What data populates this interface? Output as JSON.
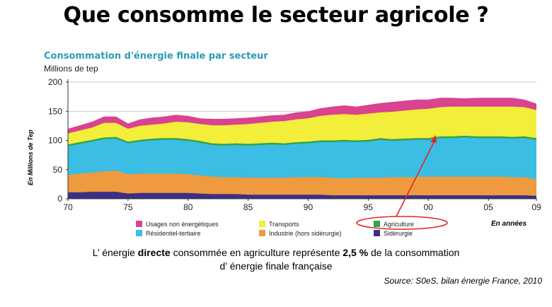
{
  "page_title": "Que consomme le secteur agricole ?",
  "side_label": "En Millions de Tep",
  "years_label": "En années",
  "note": {
    "line1_a": "L’ énergie ",
    "line1_bold": "directe",
    "line1_b": " consommée en agriculture représente ",
    "line1_pct": "2,5 %",
    "line1_c": " de la consommation",
    "line2": "d’ énergie finale française"
  },
  "source": "Source: S0eS, bilan énergie France, 2010",
  "colors": {
    "sidérurgie": "#3b2f86",
    "industrie": "#ef9a3e",
    "residentiel": "#3bbde4",
    "agriculture": "#31a24c",
    "transports": "#f2ee3a",
    "usages": "#d9438f",
    "annotation": "#e32525"
  },
  "chart_data": {
    "type": "area",
    "title": "Consommation d'énergie finale par secteur",
    "ylabel": "Millions de tep",
    "xlim": [
      1970,
      2009
    ],
    "ylim": [
      0,
      200
    ],
    "yticks": [
      0,
      50,
      100,
      150,
      200
    ],
    "xtick_labels": [
      {
        "year": 1970,
        "label": "70"
      },
      {
        "year": 1975,
        "label": "75"
      },
      {
        "year": 1980,
        "label": "80"
      },
      {
        "year": 1985,
        "label": "85"
      },
      {
        "year": 1990,
        "label": "90"
      },
      {
        "year": 1995,
        "label": "95"
      },
      {
        "year": 2000,
        "label": "00"
      },
      {
        "year": 2005,
        "label": "05"
      },
      {
        "year": 2009,
        "label": "09"
      }
    ],
    "stacked": true,
    "x": [
      1970,
      1971,
      1972,
      1973,
      1974,
      1975,
      1976,
      1977,
      1978,
      1979,
      1980,
      1981,
      1982,
      1983,
      1984,
      1985,
      1986,
      1987,
      1988,
      1989,
      1990,
      1991,
      1992,
      1993,
      1994,
      1995,
      1996,
      1997,
      1998,
      1999,
      2000,
      2001,
      2002,
      2003,
      2004,
      2005,
      2006,
      2007,
      2008,
      2009
    ],
    "cumulative_tops": [
      {
        "name": "Sidérurgie",
        "key": "siderurgie",
        "values": [
          11,
          11,
          12,
          12,
          12,
          9,
          10,
          10,
          10,
          10,
          10,
          9,
          8,
          8,
          8,
          7,
          7,
          7,
          7,
          7,
          7,
          7,
          6,
          6,
          6,
          6,
          6,
          6,
          6,
          6,
          6,
          6,
          6,
          6,
          6,
          6,
          6,
          6,
          6,
          5
        ]
      },
      {
        "name": "Industrie (hors sidérurgie)",
        "key": "industrie",
        "values": [
          41,
          43,
          45,
          47,
          48,
          42,
          43,
          43,
          43,
          43,
          42,
          40,
          38,
          37,
          37,
          36,
          36,
          36,
          36,
          37,
          37,
          37,
          36,
          35,
          36,
          36,
          36,
          37,
          37,
          37,
          38,
          38,
          38,
          38,
          38,
          38,
          38,
          37,
          37,
          33
        ]
      },
      {
        "name": "Résidentiel-tertiaire",
        "key": "residentiel",
        "values": [
          90,
          94,
          98,
          102,
          103,
          95,
          98,
          100,
          101,
          101,
          99,
          96,
          92,
          91,
          92,
          91,
          92,
          93,
          92,
          94,
          95,
          97,
          97,
          98,
          97,
          98,
          101,
          99,
          100,
          101,
          101,
          104,
          104,
          105,
          104,
          104,
          104,
          103,
          104,
          101
        ]
      },
      {
        "name": "Agriculture",
        "key": "agriculture",
        "values": [
          93,
          97,
          101,
          105,
          106,
          98,
          101,
          103,
          104,
          104,
          102,
          99,
          95,
          94,
          95,
          94,
          95,
          96,
          95,
          97,
          98,
          100,
          100,
          101,
          100,
          101,
          104,
          102,
          103,
          104,
          104,
          107,
          107,
          108,
          107,
          107,
          107,
          106,
          107,
          104
        ]
      },
      {
        "name": "Transports",
        "key": "transports",
        "values": [
          112,
          117,
          122,
          130,
          130,
          120,
          125,
          127,
          129,
          132,
          131,
          128,
          126,
          126,
          127,
          128,
          130,
          132,
          133,
          136,
          138,
          142,
          144,
          145,
          144,
          146,
          148,
          149,
          151,
          153,
          154,
          157,
          158,
          158,
          158,
          158,
          158,
          158,
          157,
          152
        ]
      },
      {
        "name": "Usages non énergétiques",
        "key": "usages",
        "values": [
          120,
          126,
          132,
          141,
          141,
          129,
          136,
          139,
          141,
          144,
          142,
          138,
          137,
          137,
          138,
          139,
          141,
          143,
          144,
          148,
          150,
          155,
          158,
          160,
          158,
          161,
          164,
          166,
          168,
          170,
          170,
          173,
          173,
          172,
          173,
          173,
          173,
          173,
          170,
          163
        ]
      }
    ],
    "legend": [
      {
        "key": "usages",
        "label": "Usages non énergétiques"
      },
      {
        "key": "transports",
        "label": "Transports"
      },
      {
        "key": "agriculture",
        "label": "Agriculture"
      },
      {
        "key": "residentiel",
        "label": "Résidentiel-tertiaire"
      },
      {
        "key": "industrie",
        "label": "Industrie (hors sidérurgie)"
      },
      {
        "key": "siderurgie",
        "label": "Sidérurgie"
      }
    ],
    "annotation": {
      "type": "arrow-and-ellipse",
      "target_series": "agriculture",
      "target_year": 2000,
      "target_value": 107
    }
  }
}
